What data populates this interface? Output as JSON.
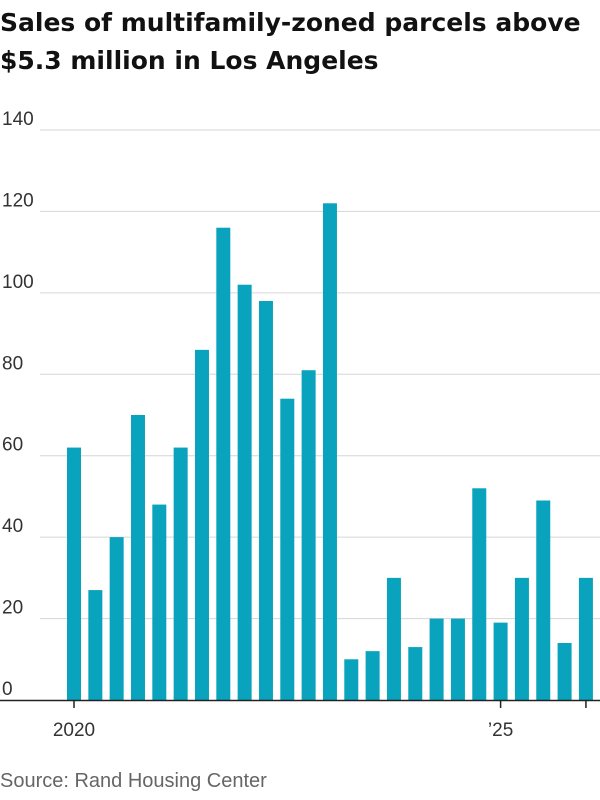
{
  "chart_data": {
    "type": "bar",
    "title": "Sales of multifamily-zoned parcels above $5.3 million in Los Angeles",
    "xlabel": "",
    "ylabel": "",
    "ylim": [
      0,
      140
    ],
    "yticks": [
      0,
      20,
      40,
      60,
      80,
      100,
      120,
      140
    ],
    "grid": true,
    "legend": "none",
    "bar_color": "#0aa3bd",
    "x_tick_labels": [
      {
        "label": "2020",
        "index": 0
      },
      {
        "label": "’25",
        "index": 20
      }
    ],
    "values": [
      62,
      27,
      40,
      70,
      48,
      62,
      86,
      116,
      102,
      98,
      74,
      81,
      122,
      10,
      12,
      30,
      13,
      20,
      20,
      52,
      19,
      30,
      49,
      14,
      30
    ]
  },
  "source": "Source: Rand Housing Center"
}
